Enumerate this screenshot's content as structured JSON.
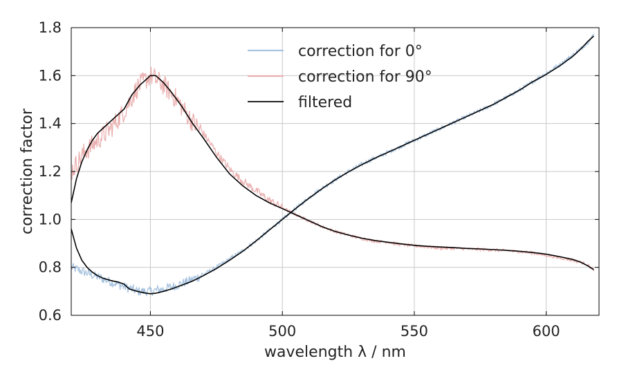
{
  "chart_data": {
    "type": "line",
    "xlabel": "wavelength λ / nm",
    "ylabel": "correction factor",
    "xlim": [
      420,
      620
    ],
    "ylim": [
      0.6,
      1.8
    ],
    "x_ticks": [
      "450",
      "500",
      "550",
      "600"
    ],
    "y_ticks": [
      "0.6",
      "0.8",
      "1.0",
      "1.2",
      "1.4",
      "1.6",
      "1.8"
    ],
    "grid": true,
    "legend_position": "top-center",
    "series": [
      {
        "name": "correction for 0°",
        "color": "#a7c3e0",
        "noise": 0.04,
        "x": [
          420,
          425,
          430,
          435,
          440,
          445,
          450,
          455,
          460,
          465,
          470,
          475,
          480,
          485,
          490,
          495,
          500,
          505,
          510,
          515,
          520,
          525,
          530,
          535,
          540,
          545,
          550,
          555,
          560,
          565,
          570,
          575,
          580,
          585,
          590,
          595,
          600,
          605,
          610,
          615,
          618
        ],
        "y": [
          0.8,
          0.78,
          0.76,
          0.74,
          0.72,
          0.7,
          0.7,
          0.71,
          0.725,
          0.745,
          0.77,
          0.8,
          0.835,
          0.87,
          0.91,
          0.955,
          1.0,
          1.045,
          1.09,
          1.13,
          1.165,
          1.2,
          1.23,
          1.255,
          1.28,
          1.305,
          1.33,
          1.355,
          1.38,
          1.405,
          1.43,
          1.455,
          1.48,
          1.51,
          1.54,
          1.575,
          1.61,
          1.645,
          1.685,
          1.73,
          1.77
        ]
      },
      {
        "name": "correction for 90°",
        "color": "#ebb0b0",
        "noise": 0.08,
        "x": [
          420,
          425,
          430,
          435,
          440,
          445,
          450,
          455,
          460,
          465,
          470,
          475,
          480,
          485,
          490,
          495,
          500,
          505,
          510,
          515,
          520,
          525,
          530,
          535,
          540,
          545,
          550,
          555,
          560,
          565,
          570,
          575,
          580,
          585,
          590,
          595,
          600,
          605,
          610,
          615,
          618
        ],
        "y": [
          1.2,
          1.28,
          1.33,
          1.38,
          1.45,
          1.55,
          1.6,
          1.56,
          1.5,
          1.42,
          1.36,
          1.28,
          1.21,
          1.16,
          1.12,
          1.08,
          1.05,
          1.02,
          0.995,
          0.97,
          0.95,
          0.935,
          0.92,
          0.91,
          0.905,
          0.895,
          0.89,
          0.885,
          0.88,
          0.88,
          0.877,
          0.875,
          0.872,
          0.87,
          0.865,
          0.86,
          0.85,
          0.84,
          0.83,
          0.815,
          0.79
        ]
      },
      {
        "name": "filtered",
        "color": "#000000",
        "curves": [
          {
            "x": [
              420,
              422,
              424,
              426,
              428,
              430,
              432,
              435,
              438,
              440,
              442,
              445,
              448,
              450,
              452,
              455,
              458,
              460,
              463,
              466,
              470,
              475,
              480,
              485,
              490,
              495,
              500,
              505,
              510,
              515,
              520,
              525,
              530,
              535,
              540,
              545,
              550,
              555,
              560,
              565,
              570,
              575,
              580,
              585,
              590,
              595,
              600,
              605,
              610,
              613,
              616,
              618
            ],
            "y": [
              0.96,
              0.88,
              0.83,
              0.8,
              0.78,
              0.765,
              0.755,
              0.745,
              0.738,
              0.73,
              0.71,
              0.7,
              0.693,
              0.69,
              0.692,
              0.7,
              0.71,
              0.718,
              0.73,
              0.743,
              0.765,
              0.795,
              0.83,
              0.867,
              0.91,
              0.955,
              1.0,
              1.045,
              1.088,
              1.128,
              1.165,
              1.198,
              1.228,
              1.255,
              1.28,
              1.305,
              1.33,
              1.355,
              1.38,
              1.405,
              1.43,
              1.455,
              1.48,
              1.51,
              1.54,
              1.575,
              1.605,
              1.64,
              1.68,
              1.71,
              1.745,
              1.765
            ]
          },
          {
            "x": [
              420,
              422,
              424,
              426,
              428,
              430,
              433,
              436,
              440,
              443,
              446,
              448,
              450,
              452,
              455,
              458,
              462,
              466,
              470,
              475,
              480,
              485,
              490,
              495,
              500,
              505,
              510,
              515,
              520,
              525,
              530,
              535,
              540,
              545,
              550,
              555,
              560,
              565,
              570,
              575,
              580,
              585,
              590,
              595,
              600,
              605,
              610,
              613,
              616,
              618
            ],
            "y": [
              1.07,
              1.17,
              1.24,
              1.29,
              1.33,
              1.36,
              1.39,
              1.42,
              1.46,
              1.52,
              1.56,
              1.58,
              1.6,
              1.6,
              1.57,
              1.53,
              1.47,
              1.4,
              1.34,
              1.26,
              1.19,
              1.14,
              1.1,
              1.07,
              1.045,
              1.02,
              0.995,
              0.97,
              0.95,
              0.935,
              0.922,
              0.912,
              0.905,
              0.898,
              0.892,
              0.888,
              0.885,
              0.882,
              0.879,
              0.877,
              0.874,
              0.871,
              0.867,
              0.862,
              0.855,
              0.845,
              0.833,
              0.822,
              0.805,
              0.79
            ]
          }
        ]
      }
    ]
  }
}
